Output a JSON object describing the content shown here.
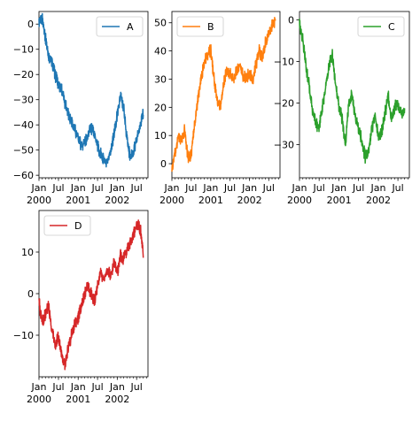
{
  "chart_data": [
    {
      "type": "line",
      "series": [
        {
          "name": "A",
          "color": "#1f77b4",
          "x": [
            "2000-01-01",
            "2000-02-01",
            "2000-03-01",
            "2000-04-01",
            "2000-05-01",
            "2000-06-01",
            "2000-07-01",
            "2000-08-01",
            "2000-09-01",
            "2000-10-01",
            "2000-11-01",
            "2000-12-01",
            "2001-01-01",
            "2001-02-01",
            "2001-03-01",
            "2001-04-01",
            "2001-05-01",
            "2001-06-01",
            "2001-07-01",
            "2001-08-01",
            "2001-09-01",
            "2001-10-01",
            "2001-11-01",
            "2001-12-01",
            "2002-01-01",
            "2002-02-01",
            "2002-03-01",
            "2002-04-01",
            "2002-05-01",
            "2002-06-01",
            "2002-07-01",
            "2002-08-01",
            "2002-09-01"
          ],
          "values": [
            0,
            2,
            -5,
            -13,
            -15,
            -20,
            -24,
            -26,
            -31,
            -35,
            -39,
            -42,
            -45,
            -48,
            -47,
            -44,
            -41,
            -43,
            -48,
            -52,
            -54,
            -56,
            -50,
            -44,
            -36,
            -28,
            -33,
            -45,
            -53,
            -50,
            -46,
            -41,
            -35
          ]
        }
      ],
      "xticks": [
        "Jan\n2000",
        "Jul",
        "Jan\n2001",
        "Jul",
        "Jan\n2002",
        "Jul"
      ],
      "ylim": [
        -61,
        5
      ],
      "yticks": [
        0,
        -10,
        -20,
        -30,
        -40,
        -50,
        -60
      ],
      "legend": "top-right"
    },
    {
      "type": "line",
      "series": [
        {
          "name": "B",
          "color": "#ff7f0e",
          "x": [
            "2000-01-01",
            "2000-02-01",
            "2000-03-01",
            "2000-04-01",
            "2000-05-01",
            "2000-06-01",
            "2000-07-01",
            "2000-08-01",
            "2000-09-01",
            "2000-10-01",
            "2000-11-01",
            "2000-12-01",
            "2001-01-01",
            "2001-02-01",
            "2001-03-01",
            "2001-04-01",
            "2001-05-01",
            "2001-06-01",
            "2001-07-01",
            "2001-08-01",
            "2001-09-01",
            "2001-10-01",
            "2001-11-01",
            "2001-12-01",
            "2002-01-01",
            "2002-02-01",
            "2002-03-01",
            "2002-04-01",
            "2002-05-01",
            "2002-06-01",
            "2002-07-01",
            "2002-08-01",
            "2002-09-01"
          ],
          "values": [
            -2,
            4,
            10,
            8,
            12,
            2,
            3,
            14,
            22,
            30,
            36,
            39,
            40,
            30,
            22,
            20,
            28,
            33,
            32,
            30,
            33,
            35,
            31,
            30,
            32,
            29,
            35,
            40,
            38,
            43,
            47,
            49,
            51
          ]
        }
      ],
      "xticks": [
        "Jan\n2000",
        "Jul",
        "Jan\n2001",
        "Jul",
        "Jan\n2002",
        "Jul"
      ],
      "ylim": [
        -5,
        54
      ],
      "yticks": [
        0,
        10,
        20,
        30,
        40,
        50
      ],
      "legend": "top-left"
    },
    {
      "type": "line",
      "series": [
        {
          "name": "C",
          "color": "#2ca02c",
          "x": [
            "2000-01-01",
            "2000-02-01",
            "2000-03-01",
            "2000-04-01",
            "2000-05-01",
            "2000-06-01",
            "2000-07-01",
            "2000-08-01",
            "2000-09-01",
            "2000-10-01",
            "2000-11-01",
            "2000-12-01",
            "2001-01-01",
            "2001-02-01",
            "2001-03-01",
            "2001-04-01",
            "2001-05-01",
            "2001-06-01",
            "2001-07-01",
            "2001-08-01",
            "2001-09-01",
            "2001-10-01",
            "2001-11-01",
            "2001-12-01",
            "2002-01-01",
            "2002-02-01",
            "2002-03-01",
            "2002-04-01",
            "2002-05-01",
            "2002-06-01",
            "2002-07-01",
            "2002-08-01",
            "2002-09-01"
          ],
          "values": [
            -1,
            -5,
            -11,
            -16,
            -22,
            -25,
            -26,
            -21,
            -16,
            -11,
            -8,
            -16,
            -21,
            -24,
            -30,
            -20,
            -18,
            -23,
            -26,
            -29,
            -33,
            -32,
            -26,
            -23,
            -28,
            -27,
            -23,
            -18,
            -24,
            -21,
            -20,
            -23,
            -22
          ]
        }
      ],
      "xticks": [
        "Jan\n2000",
        "Jul",
        "Jan\n2001",
        "Jul",
        "Jan\n2002",
        "Jul"
      ],
      "ylim": [
        -38,
        2
      ],
      "yticks": [
        0,
        -10,
        -20,
        -30
      ],
      "legend": "top-right"
    },
    {
      "type": "line",
      "series": [
        {
          "name": "D",
          "color": "#d62728",
          "x": [
            "2000-01-01",
            "2000-02-01",
            "2000-03-01",
            "2000-04-01",
            "2000-05-01",
            "2000-06-01",
            "2000-07-01",
            "2000-08-01",
            "2000-09-01",
            "2000-10-01",
            "2000-11-01",
            "2000-12-01",
            "2001-01-01",
            "2001-02-01",
            "2001-03-01",
            "2001-04-01",
            "2001-05-01",
            "2001-06-01",
            "2001-07-01",
            "2001-08-01",
            "2001-09-01",
            "2001-10-01",
            "2001-11-01",
            "2001-12-01",
            "2002-01-01",
            "2002-02-01",
            "2002-03-01",
            "2002-04-01",
            "2002-05-01",
            "2002-06-01",
            "2002-07-01",
            "2002-08-01",
            "2002-09-01"
          ],
          "values": [
            -2,
            -7,
            -5,
            -3,
            -9,
            -12,
            -10,
            -15,
            -17,
            -13,
            -10,
            -7,
            -6,
            -3,
            0,
            2,
            0,
            -2,
            2,
            5,
            3,
            6,
            4,
            8,
            5,
            9,
            8,
            11,
            12,
            14,
            17,
            16,
            10
          ]
        }
      ],
      "xticks": [
        "Jan\n2000",
        "Jul",
        "Jan\n2001",
        "Jul",
        "Jan\n2002",
        "Jul"
      ],
      "ylim": [
        -20,
        20
      ],
      "yticks": [
        10,
        0,
        -10
      ],
      "legend": "top-left"
    }
  ]
}
